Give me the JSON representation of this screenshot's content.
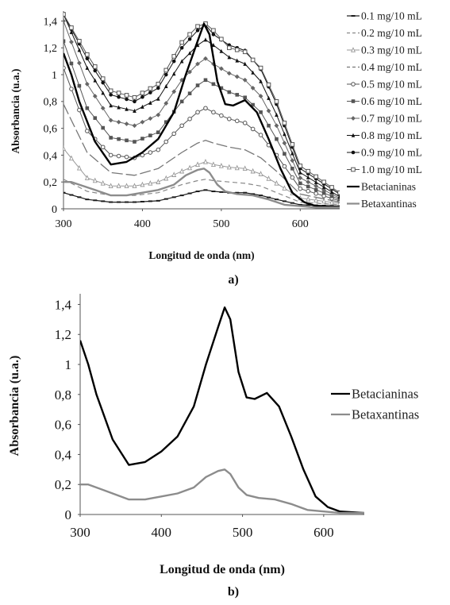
{
  "chart_data": [
    {
      "type": "line",
      "panel_label": "a)",
      "xlabel": "Longitud de onda (nm)",
      "ylabel": "Absorbancia (u.a.)",
      "xlim": [
        300,
        650
      ],
      "ylim": [
        0,
        1.45
      ],
      "xticks": [
        "300",
        "400",
        "500",
        "600"
      ],
      "yticks": [
        "0",
        "0,2",
        "0,4",
        "0,6",
        "0,8",
        "1",
        "1,2",
        "1,4"
      ],
      "grid": false,
      "legend_position": "right",
      "series": [
        {
          "name": "0.1 mg/10 mL",
          "color": "#1a1a1a",
          "marker": "bar",
          "dash": "",
          "width": 1.2,
          "x": [
            300,
            330,
            360,
            390,
            420,
            450,
            470,
            480,
            490,
            510,
            530,
            550,
            570,
            600,
            650
          ],
          "y": [
            0.12,
            0.07,
            0.05,
            0.05,
            0.06,
            0.1,
            0.13,
            0.14,
            0.13,
            0.12,
            0.12,
            0.1,
            0.07,
            0.03,
            0.02
          ]
        },
        {
          "name": "0.2 mg/10 mL",
          "color": "#888888",
          "marker": "none",
          "dash": "6,4",
          "width": 1.2,
          "x": [
            300,
            330,
            360,
            390,
            420,
            450,
            470,
            480,
            490,
            510,
            530,
            550,
            570,
            600,
            650
          ],
          "y": [
            0.22,
            0.13,
            0.1,
            0.1,
            0.12,
            0.18,
            0.21,
            0.22,
            0.21,
            0.2,
            0.19,
            0.17,
            0.12,
            0.05,
            0.03
          ]
        },
        {
          "name": "0.3 mg/10 mL",
          "color": "#999999",
          "marker": "triangle-open",
          "dash": "",
          "width": 1.0,
          "x": [
            300,
            330,
            360,
            390,
            420,
            450,
            470,
            480,
            490,
            510,
            530,
            550,
            570,
            600,
            650
          ],
          "y": [
            0.45,
            0.23,
            0.17,
            0.17,
            0.2,
            0.28,
            0.33,
            0.35,
            0.33,
            0.31,
            0.3,
            0.26,
            0.19,
            0.08,
            0.04
          ]
        },
        {
          "name": "0.4 mg/10 mL",
          "color": "#777777",
          "marker": "none",
          "dash": "14,4",
          "width": 1.3,
          "x": [
            300,
            330,
            360,
            390,
            420,
            450,
            470,
            480,
            490,
            510,
            530,
            550,
            570,
            600,
            650
          ],
          "y": [
            0.78,
            0.42,
            0.27,
            0.25,
            0.3,
            0.42,
            0.49,
            0.51,
            0.49,
            0.46,
            0.44,
            0.38,
            0.28,
            0.11,
            0.05
          ]
        },
        {
          "name": "0.5 mg/10 mL",
          "color": "#555555",
          "marker": "circle-open",
          "dash": "",
          "width": 1.0,
          "x": [
            300,
            330,
            360,
            390,
            420,
            450,
            470,
            480,
            490,
            510,
            530,
            550,
            570,
            600,
            650
          ],
          "y": [
            1.05,
            0.58,
            0.4,
            0.38,
            0.44,
            0.62,
            0.72,
            0.75,
            0.72,
            0.67,
            0.64,
            0.55,
            0.4,
            0.15,
            0.06
          ]
        },
        {
          "name": "0.6 mg/10 mL",
          "color": "#555555",
          "marker": "square",
          "dash": "",
          "width": 1.0,
          "x": [
            300,
            330,
            360,
            390,
            420,
            450,
            470,
            480,
            490,
            510,
            530,
            550,
            570,
            600,
            650
          ],
          "y": [
            1.25,
            0.75,
            0.53,
            0.5,
            0.57,
            0.8,
            0.92,
            0.96,
            0.93,
            0.87,
            0.83,
            0.72,
            0.52,
            0.19,
            0.07
          ]
        },
        {
          "name": "0.7 mg/10 mL",
          "color": "#666666",
          "marker": "diamond",
          "dash": "",
          "width": 1.0,
          "x": [
            300,
            330,
            360,
            390,
            420,
            450,
            470,
            480,
            490,
            510,
            530,
            550,
            570,
            600,
            650
          ],
          "y": [
            1.4,
            0.93,
            0.66,
            0.62,
            0.7,
            0.96,
            1.08,
            1.12,
            1.08,
            1.01,
            0.96,
            0.84,
            0.62,
            0.23,
            0.08
          ]
        },
        {
          "name": "0.8 mg/10 mL",
          "color": "#111111",
          "marker": "triangle",
          "dash": "",
          "width": 1.0,
          "x": [
            300,
            330,
            360,
            390,
            420,
            450,
            470,
            480,
            490,
            510,
            530,
            550,
            570,
            600,
            650
          ],
          "y": [
            1.45,
            1.05,
            0.77,
            0.73,
            0.82,
            1.1,
            1.22,
            1.26,
            1.22,
            1.13,
            1.08,
            0.95,
            0.7,
            0.27,
            0.09
          ]
        },
        {
          "name": "0.9 mg/10 mL",
          "color": "#111111",
          "marker": "circle",
          "dash": "",
          "width": 1.0,
          "x": [
            300,
            330,
            360,
            390,
            420,
            450,
            470,
            480,
            490,
            510,
            530,
            550,
            570,
            600,
            650
          ],
          "y": [
            1.45,
            1.12,
            0.85,
            0.8,
            0.9,
            1.2,
            1.33,
            1.37,
            1.3,
            1.22,
            1.18,
            1.04,
            0.78,
            0.3,
            0.11
          ]
        },
        {
          "name": "1.0 mg/10 mL",
          "color": "#555555",
          "marker": "square-open",
          "dash": "",
          "width": 1.0,
          "x": [
            300,
            330,
            360,
            390,
            420,
            450,
            470,
            480,
            490,
            510,
            530,
            550,
            570,
            600,
            650
          ],
          "y": [
            1.45,
            1.15,
            0.88,
            0.83,
            0.93,
            1.24,
            1.36,
            1.38,
            1.33,
            1.2,
            1.17,
            1.05,
            0.8,
            0.32,
            0.12
          ]
        },
        {
          "name": "Betacianinas",
          "color": "#000000",
          "marker": "none",
          "dash": "",
          "width": 2.4,
          "x": [
            300,
            310,
            320,
            340,
            360,
            380,
            400,
            420,
            440,
            455,
            470,
            478,
            485,
            495,
            505,
            515,
            530,
            545,
            560,
            575,
            590,
            605,
            620,
            650
          ],
          "y": [
            1.16,
            1.0,
            0.8,
            0.5,
            0.33,
            0.35,
            0.42,
            0.52,
            0.72,
            1.0,
            1.25,
            1.38,
            1.3,
            0.95,
            0.78,
            0.77,
            0.81,
            0.72,
            0.52,
            0.3,
            0.12,
            0.05,
            0.02,
            0.01
          ]
        },
        {
          "name": "Betaxantinas",
          "color": "#8c8c8c",
          "marker": "none",
          "dash": "",
          "width": 2.4,
          "x": [
            300,
            310,
            320,
            340,
            360,
            380,
            400,
            420,
            440,
            455,
            470,
            478,
            485,
            495,
            505,
            520,
            540,
            560,
            580,
            600,
            620,
            650
          ],
          "y": [
            0.2,
            0.2,
            0.18,
            0.14,
            0.1,
            0.1,
            0.12,
            0.14,
            0.18,
            0.25,
            0.29,
            0.3,
            0.27,
            0.18,
            0.13,
            0.11,
            0.1,
            0.07,
            0.03,
            0.02,
            0.01,
            0.01
          ]
        }
      ]
    },
    {
      "type": "line",
      "panel_label": "b)",
      "xlabel": "Longitud de onda (nm)",
      "ylabel": "Absorbancia (u.a.)",
      "xlim": [
        300,
        650
      ],
      "ylim": [
        0,
        1.45
      ],
      "xticks": [
        "300",
        "400",
        "500",
        "600"
      ],
      "yticks": [
        "0",
        "0,2",
        "0,4",
        "0,6",
        "0,8",
        "1",
        "1,2",
        "1,4"
      ],
      "grid": false,
      "legend_position": "right",
      "series": [
        {
          "name": "Betacianinas",
          "color": "#000000",
          "marker": "none",
          "dash": "",
          "width": 2.4,
          "x": [
            300,
            310,
            320,
            340,
            360,
            380,
            400,
            420,
            440,
            455,
            470,
            478,
            485,
            495,
            505,
            515,
            530,
            545,
            560,
            575,
            590,
            605,
            620,
            650
          ],
          "y": [
            1.16,
            1.0,
            0.8,
            0.5,
            0.33,
            0.35,
            0.42,
            0.52,
            0.72,
            1.0,
            1.25,
            1.38,
            1.3,
            0.95,
            0.78,
            0.77,
            0.81,
            0.72,
            0.52,
            0.3,
            0.12,
            0.05,
            0.02,
            0.01
          ]
        },
        {
          "name": "Betaxantinas",
          "color": "#8c8c8c",
          "marker": "none",
          "dash": "",
          "width": 2.4,
          "x": [
            300,
            310,
            320,
            340,
            360,
            380,
            400,
            420,
            440,
            455,
            470,
            478,
            485,
            495,
            505,
            520,
            540,
            560,
            580,
            600,
            620,
            650
          ],
          "y": [
            0.2,
            0.2,
            0.18,
            0.14,
            0.1,
            0.1,
            0.12,
            0.14,
            0.18,
            0.25,
            0.29,
            0.3,
            0.27,
            0.18,
            0.13,
            0.11,
            0.1,
            0.07,
            0.03,
            0.02,
            0.01,
            0.01
          ]
        }
      ]
    }
  ]
}
